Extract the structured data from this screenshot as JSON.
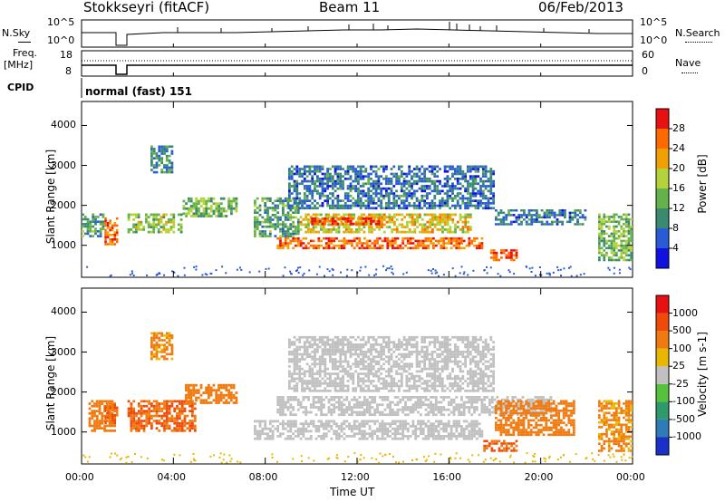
{
  "header": {
    "station": "Stokkseyri (fitACF)",
    "beam": "Beam 11",
    "date": "06/Feb/2013"
  },
  "strip_labels": {
    "nsky": "N.Sky",
    "nsearch": "N.Search",
    "freq": "Freq.",
    "mhz": "[MHz]",
    "nave": "Nave",
    "cpid": "CPID",
    "cpid_value": "normal (fast) 151",
    "nsky_top": "10^5",
    "nsky_bottom": "10^0",
    "nsearch_top": "10^5",
    "nsearch_bottom": "10^0",
    "freq_top": "18",
    "freq_bottom": "8",
    "nave_top": "60",
    "nave_bottom": "0"
  },
  "chart_data": [
    {
      "type": "heatmap",
      "title": "",
      "xlabel": "Time UT",
      "ylabel": "Slant Range [km]",
      "x_range": [
        0,
        24
      ],
      "ylim": [
        200,
        4600
      ],
      "y_ticks": [
        "1000",
        "2000",
        "3000",
        "4000"
      ],
      "colorbar": {
        "label": "Power [dB]",
        "levels": [
          "4",
          "8",
          "12",
          "16",
          "20",
          "24",
          "28"
        ],
        "colors": [
          "#1010e0",
          "#2a5bd6",
          "#3a8a70",
          "#66b24a",
          "#b6d23a",
          "#f0a000",
          "#ff6a00",
          "#e81010"
        ]
      },
      "regions": [
        {
          "t": [
            0.0,
            1.0
          ],
          "r": [
            1200,
            1800
          ],
          "v": 12
        },
        {
          "t": [
            1.0,
            1.6
          ],
          "r": [
            1000,
            1700
          ],
          "v": 26
        },
        {
          "t": [
            2.0,
            4.4
          ],
          "r": [
            1300,
            1800
          ],
          "v": 16
        },
        {
          "t": [
            3.0,
            4.0
          ],
          "r": [
            2800,
            3500
          ],
          "v": 10
        },
        {
          "t": [
            4.4,
            6.8
          ],
          "r": [
            1700,
            2200
          ],
          "v": 14
        },
        {
          "t": [
            7.5,
            9.5
          ],
          "r": [
            1200,
            2200
          ],
          "v": 12
        },
        {
          "t": [
            8.5,
            17.5
          ],
          "r": [
            900,
            1200
          ],
          "v": 26
        },
        {
          "t": [
            9.5,
            17.0
          ],
          "r": [
            1300,
            1800
          ],
          "v": 20
        },
        {
          "t": [
            10.0,
            13.0
          ],
          "r": [
            1500,
            1700
          ],
          "v": 28
        },
        {
          "t": [
            9.0,
            18.0
          ],
          "r": [
            1900,
            3000
          ],
          "v": 8
        },
        {
          "t": [
            17.8,
            19.0
          ],
          "r": [
            600,
            900
          ],
          "v": 28
        },
        {
          "t": [
            18.0,
            22.0
          ],
          "r": [
            1500,
            1900
          ],
          "v": 8
        },
        {
          "t": [
            22.5,
            24.0
          ],
          "r": [
            600,
            1800
          ],
          "v": 14
        }
      ]
    },
    {
      "type": "heatmap",
      "title": "",
      "xlabel": "Time UT",
      "ylabel": "Slant Range [km]",
      "x_range": [
        0,
        24
      ],
      "ylim": [
        200,
        4600
      ],
      "y_ticks": [
        "1000",
        "2000",
        "3000",
        "4000"
      ],
      "x_ticks": [
        "00:00",
        "04:00",
        "08:00",
        "12:00",
        "16:00",
        "20:00",
        "00:00"
      ],
      "colorbar": {
        "label": "Velocity [m s-1]",
        "levels": [
          "1000",
          "500",
          "100",
          "25",
          "-25",
          "-100",
          "-500",
          "-1000"
        ],
        "colors": [
          "#1a30c8",
          "#2f7bb8",
          "#2e9a6a",
          "#56c13a",
          "#c0c0c0",
          "#e8b800",
          "#f07a10",
          "#f04a0a",
          "#e81010"
        ]
      },
      "regions": [
        {
          "t": [
            0.3,
            1.5
          ],
          "r": [
            1000,
            1800
          ],
          "v": -300
        },
        {
          "t": [
            1.0,
            1.6
          ],
          "r": [
            1200,
            1700
          ],
          "v": -500
        },
        {
          "t": [
            2.0,
            5.0
          ],
          "r": [
            1000,
            1800
          ],
          "v": -500
        },
        {
          "t": [
            4.5,
            6.8
          ],
          "r": [
            1700,
            2200
          ],
          "v": -400
        },
        {
          "t": [
            3.0,
            4.0
          ],
          "r": [
            2800,
            3500
          ],
          "v": -150
        },
        {
          "t": [
            7.5,
            17.5
          ],
          "r": [
            800,
            1300
          ],
          "v": 0
        },
        {
          "t": [
            8.5,
            20.5
          ],
          "r": [
            1400,
            1900
          ],
          "v": 0
        },
        {
          "t": [
            9.0,
            18.0
          ],
          "r": [
            2000,
            3400
          ],
          "v": 0
        },
        {
          "t": [
            17.5,
            19.0
          ],
          "r": [
            500,
            800
          ],
          "v": -500
        },
        {
          "t": [
            18.0,
            21.5
          ],
          "r": [
            900,
            1800
          ],
          "v": -200
        },
        {
          "t": [
            22.5,
            24.0
          ],
          "r": [
            500,
            1800
          ],
          "v": -150
        }
      ]
    }
  ]
}
